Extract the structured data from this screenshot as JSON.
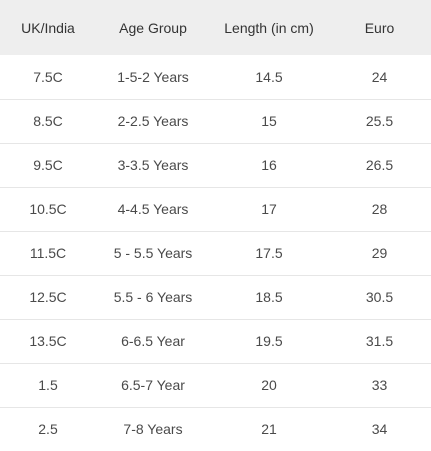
{
  "table": {
    "headers": [
      "UK/India",
      "Age Group",
      "Length (in cm)",
      "Euro"
    ],
    "rows": [
      [
        "7.5C",
        "1-5-2 Years",
        "14.5",
        "24"
      ],
      [
        "8.5C",
        "2-2.5 Years",
        "15",
        "25.5"
      ],
      [
        "9.5C",
        "3-3.5 Years",
        "16",
        "26.5"
      ],
      [
        "10.5C",
        "4-4.5 Years",
        "17",
        "28"
      ],
      [
        "11.5C",
        "5 - 5.5 Years",
        "17.5",
        "29"
      ],
      [
        "12.5C",
        "5.5 - 6 Years",
        "18.5",
        "30.5"
      ],
      [
        "13.5C",
        "6-6.5 Year",
        "19.5",
        "31.5"
      ],
      [
        "1.5",
        "6.5-7 Year",
        "20",
        "33"
      ],
      [
        "2.5",
        "7-8 Years",
        "21",
        "34"
      ]
    ]
  }
}
